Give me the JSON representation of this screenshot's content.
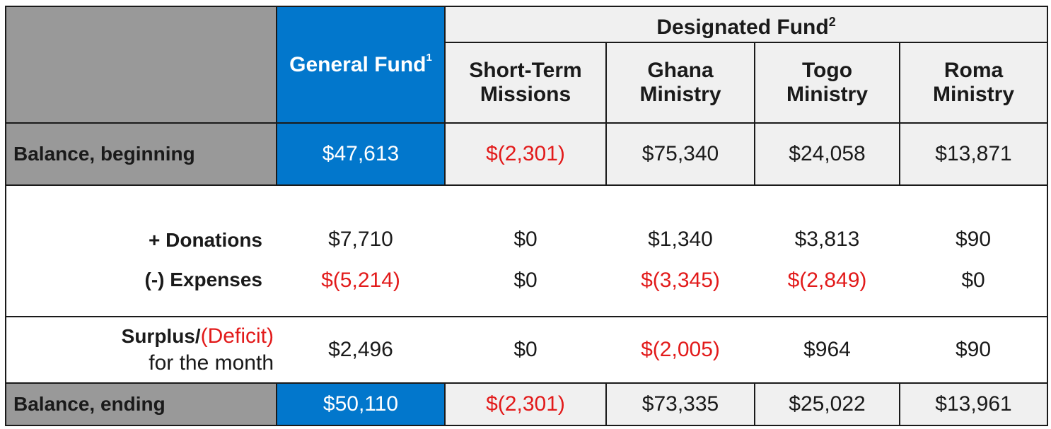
{
  "header": {
    "general_fund": "General Fund",
    "general_fund_sup": "1",
    "designated_fund": "Designated Fund",
    "designated_fund_sup": "2",
    "columns": [
      {
        "line1": "Short-Term",
        "line2": "Missions"
      },
      {
        "line1": "Ghana",
        "line2": "Ministry"
      },
      {
        "line1": "Togo",
        "line2": "Ministry"
      },
      {
        "line1": "Roma",
        "line2": "Ministry"
      }
    ]
  },
  "rows": {
    "balance_beginning": {
      "label": "Balance, beginning",
      "values": [
        "$47,613",
        "$(2,301)",
        "$75,340",
        "$24,058",
        "$13,871"
      ]
    },
    "donations": {
      "label": "+  Donations",
      "values": [
        "$7,710",
        "$0",
        "$1,340",
        "$3,813",
        "$90"
      ]
    },
    "expenses": {
      "label": "(-)  Expenses",
      "values": [
        "$(5,214)",
        "$0",
        "$(3,345)",
        "$(2,849)",
        "$0"
      ]
    },
    "surplus": {
      "label_surplus": "Surplus/",
      "label_deficit": "(Deficit)",
      "label_line2": "for the month",
      "values": [
        "$2,496",
        "$0",
        "$(2,005)",
        "$964",
        "$90"
      ]
    },
    "balance_ending": {
      "label": "Balance, ending",
      "values": [
        "$50,110",
        "$(2,301)",
        "$73,335",
        "$25,022",
        "$13,961"
      ]
    }
  },
  "colors": {
    "general_fund_blue": "#0277cc",
    "negative_red": "#e21a1a",
    "label_grey": "#999999",
    "header_light": "#f0f0f0"
  }
}
